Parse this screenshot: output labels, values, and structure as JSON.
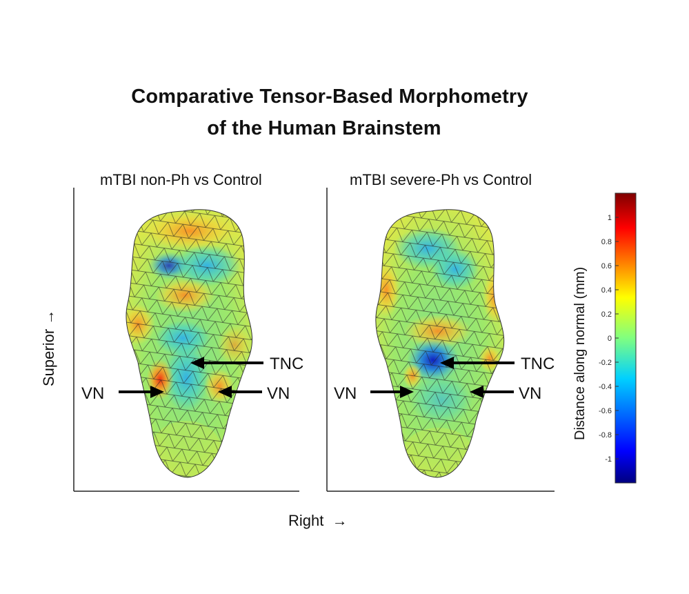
{
  "figure": {
    "title_line1": "Comparative Tensor-Based Morphometry",
    "title_line2": "of the Human Brainstem",
    "y_axis_label": "Superior",
    "x_axis_label": "Right",
    "arrow_symbol": "→"
  },
  "panels": [
    {
      "title": "mTBI non-Ph vs Control",
      "labels": {
        "tnc": "TNC",
        "vn_left": "VN",
        "vn_right": "VN"
      }
    },
    {
      "title": "mTBI severe-Ph vs Control",
      "labels": {
        "tnc": "TNC",
        "vn_left": "VN",
        "vn_right": "VN"
      }
    }
  ],
  "colorbar": {
    "label": "Distance along normal (mm)",
    "ticks": [
      "1",
      "0.8",
      "0.6",
      "0.4",
      "0.2",
      "0",
      "-0.2",
      "-0.4",
      "-0.6",
      "-0.8",
      "-1"
    ],
    "range": [
      -1.2,
      1.2
    ],
    "colormap": [
      "#00007f",
      "#0000ff",
      "#00bfff",
      "#40e0d0",
      "#c0ff40",
      "#ffff00",
      "#ff9900",
      "#ff0000",
      "#7f0000"
    ]
  }
}
